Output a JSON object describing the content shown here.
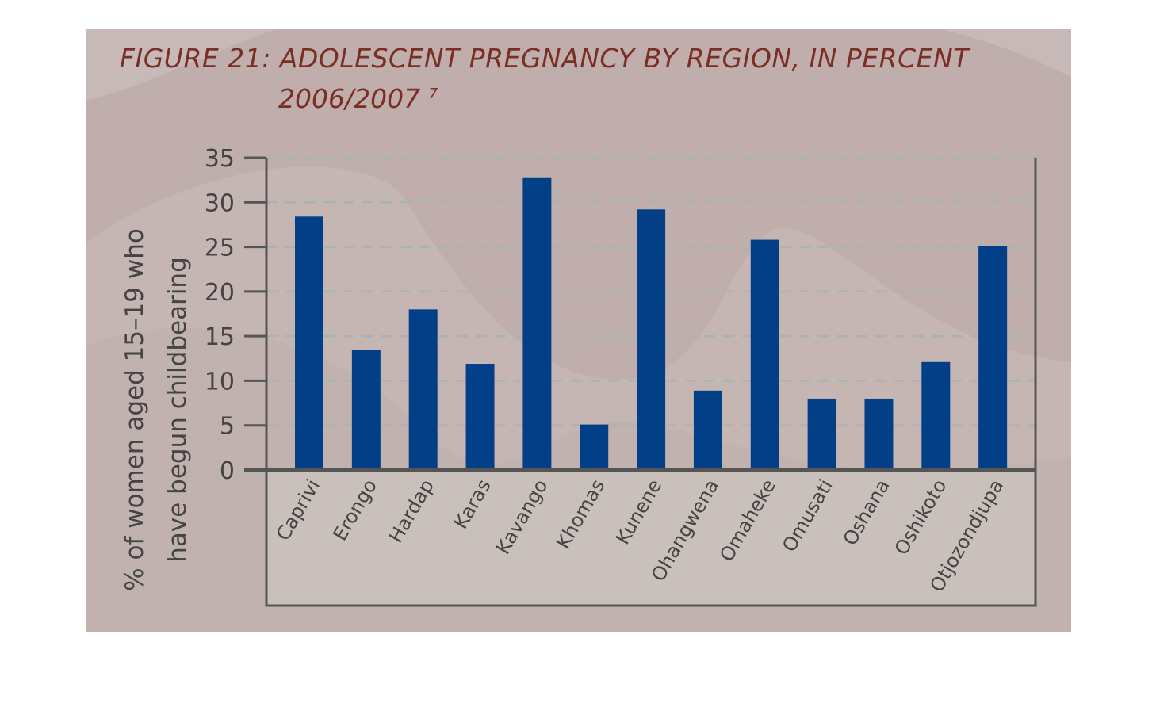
{
  "chart_data": {
    "type": "bar",
    "title": "FIGURE 21: ADOLESCENT PREGNANCY BY REGION, IN PERCENT",
    "subtitle": "2006/2007",
    "footnote_mark": "7",
    "ylabel_line1": "% of women aged 15–19 who",
    "ylabel_line2": "have begun childbearing",
    "xlabel": "",
    "ylim": [
      0,
      35
    ],
    "yticks": [
      0,
      5,
      10,
      15,
      20,
      25,
      30,
      35
    ],
    "grid": true,
    "categories": [
      "Caprivi",
      "Erongo",
      "Hardap",
      "Karas",
      "Kavango",
      "Khomas",
      "Kunene",
      "Ohangwena",
      "Omaheke",
      "Omusati",
      "Oshana",
      "Oshikoto",
      "Otjozondjupa"
    ],
    "values": [
      28.4,
      13.5,
      18.0,
      11.9,
      32.8,
      5.1,
      29.2,
      8.9,
      25.8,
      8.0,
      8.0,
      12.1,
      25.1
    ],
    "bar_color": "#033f87"
  }
}
